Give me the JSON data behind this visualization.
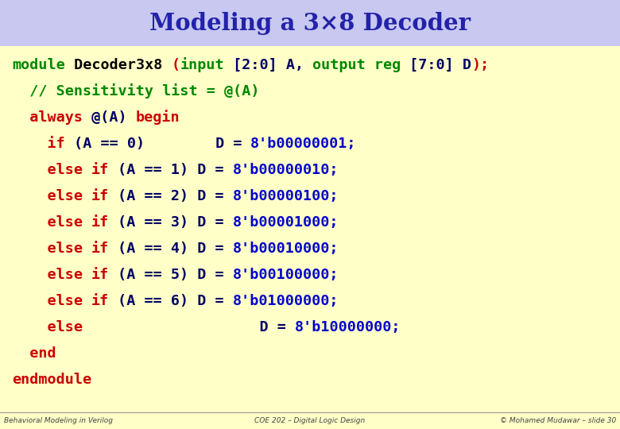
{
  "title": "Modeling a 3×8 Decoder",
  "title_color": "#2222aa",
  "title_bg": "#c8c8f0",
  "body_bg": "#ffffc8",
  "footer_left": "Behavioral Modeling in Verilog",
  "footer_center": "COE 202 – Digital Logic Design",
  "footer_right": "© Mohamed Mudawar – slide 30",
  "code_lines": [
    [
      {
        "t": "module",
        "c": "#008800"
      },
      {
        "t": " Decoder3x8 ",
        "c": "#000000"
      },
      {
        "t": "(",
        "c": "#cc0000"
      },
      {
        "t": "input",
        "c": "#008800"
      },
      {
        "t": " [2:0] A, ",
        "c": "#000066"
      },
      {
        "t": "output reg",
        "c": "#008800"
      },
      {
        "t": " [7:0] D",
        "c": "#000066"
      },
      {
        "t": ");",
        "c": "#cc0000"
      }
    ],
    [
      {
        "t": "  // Sensitivity list = @(A)",
        "c": "#008800"
      }
    ],
    [
      {
        "t": "  always",
        "c": "#cc0000"
      },
      {
        "t": " @(A) ",
        "c": "#000066"
      },
      {
        "t": "begin",
        "c": "#cc0000"
      }
    ],
    [
      {
        "t": "    if",
        "c": "#cc0000"
      },
      {
        "t": " (A == 0)        D = ",
        "c": "#000066"
      },
      {
        "t": "8'b00000001;",
        "c": "#0000cc"
      }
    ],
    [
      {
        "t": "    else ",
        "c": "#cc0000"
      },
      {
        "t": "if",
        "c": "#cc0000"
      },
      {
        "t": " (A == 1) D = ",
        "c": "#000066"
      },
      {
        "t": "8'b00000010;",
        "c": "#0000cc"
      }
    ],
    [
      {
        "t": "    else ",
        "c": "#cc0000"
      },
      {
        "t": "if",
        "c": "#cc0000"
      },
      {
        "t": " (A == 2) D = ",
        "c": "#000066"
      },
      {
        "t": "8'b00000100;",
        "c": "#0000cc"
      }
    ],
    [
      {
        "t": "    else ",
        "c": "#cc0000"
      },
      {
        "t": "if",
        "c": "#cc0000"
      },
      {
        "t": " (A == 3) D = ",
        "c": "#000066"
      },
      {
        "t": "8'b00001000;",
        "c": "#0000cc"
      }
    ],
    [
      {
        "t": "    else ",
        "c": "#cc0000"
      },
      {
        "t": "if",
        "c": "#cc0000"
      },
      {
        "t": " (A == 4) D = ",
        "c": "#000066"
      },
      {
        "t": "8'b00010000;",
        "c": "#0000cc"
      }
    ],
    [
      {
        "t": "    else ",
        "c": "#cc0000"
      },
      {
        "t": "if",
        "c": "#cc0000"
      },
      {
        "t": " (A == 5) D = ",
        "c": "#000066"
      },
      {
        "t": "8'b00100000;",
        "c": "#0000cc"
      }
    ],
    [
      {
        "t": "    else ",
        "c": "#cc0000"
      },
      {
        "t": "if",
        "c": "#cc0000"
      },
      {
        "t": " (A == 6) D = ",
        "c": "#000066"
      },
      {
        "t": "8'b01000000;",
        "c": "#0000cc"
      }
    ],
    [
      {
        "t": "    else",
        "c": "#cc0000"
      },
      {
        "t": "                    D = ",
        "c": "#000066"
      },
      {
        "t": "8'b10000000;",
        "c": "#0000cc"
      }
    ],
    [
      {
        "t": "  end",
        "c": "#cc0000"
      }
    ],
    [
      {
        "t": "endmodule",
        "c": "#cc0000"
      }
    ]
  ]
}
